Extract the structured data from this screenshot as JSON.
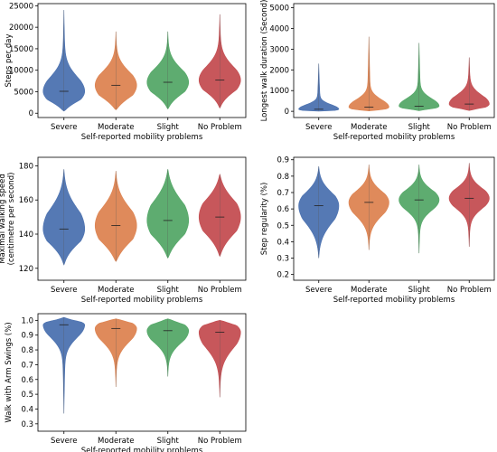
{
  "colors": [
    "#4c72b0",
    "#dd8452",
    "#55a868",
    "#c44e52"
  ],
  "chart_data": [
    {
      "type": "violin",
      "xlabel": "Self-reported mobility problems",
      "ylabel": "Steps per day",
      "categories": [
        "Severe",
        "Moderate",
        "Slight",
        "No Problem"
      ],
      "ylim": [
        -1000,
        25500
      ],
      "yticks": [
        0,
        5000,
        10000,
        15000,
        20000,
        25000
      ],
      "ytick_labels": [
        "0",
        "5000",
        "10000",
        "15000",
        "20000",
        "25000"
      ],
      "series": [
        {
          "min": 500,
          "q1": 3200,
          "median": 5100,
          "q3": 7500,
          "max": 24000
        },
        {
          "min": 800,
          "q1": 4200,
          "median": 6500,
          "q3": 8800,
          "max": 19000
        },
        {
          "min": 1000,
          "q1": 5000,
          "median": 7200,
          "q3": 9500,
          "max": 19000
        },
        {
          "min": 1200,
          "q1": 5500,
          "median": 7700,
          "q3": 10000,
          "max": 23000
        }
      ]
    },
    {
      "type": "violin",
      "xlabel": "Self-reported mobility problems",
      "ylabel": "Longest walk duration (Second)",
      "categories": [
        "Severe",
        "Moderate",
        "Slight",
        "No Problem"
      ],
      "ylim": [
        -300,
        5200
      ],
      "yticks": [
        0,
        1000,
        2000,
        3000,
        4000,
        5000
      ],
      "ytick_labels": [
        "0",
        "1000",
        "2000",
        "3000",
        "4000",
        "5000"
      ],
      "series": [
        {
          "min": 10,
          "q1": 40,
          "median": 100,
          "q3": 250,
          "max": 2300
        },
        {
          "min": 20,
          "q1": 100,
          "median": 200,
          "q3": 450,
          "max": 3600
        },
        {
          "min": 30,
          "q1": 150,
          "median": 250,
          "q3": 500,
          "max": 3300
        },
        {
          "min": 40,
          "q1": 200,
          "median": 350,
          "q3": 650,
          "max": 2600
        }
      ]
    },
    {
      "type": "violin",
      "xlabel": "Self-reported mobility problems",
      "ylabel": "Maximal walking speed\n(centimetre per second)",
      "categories": [
        "Severe",
        "Moderate",
        "Slight",
        "No Problem"
      ],
      "ylim": [
        113,
        185
      ],
      "yticks": [
        120,
        140,
        160,
        180
      ],
      "ytick_labels": [
        "120",
        "140",
        "160",
        "180"
      ],
      "series": [
        {
          "min": 122,
          "q1": 136,
          "median": 143,
          "q3": 152,
          "max": 178
        },
        {
          "min": 124,
          "q1": 137,
          "median": 145,
          "q3": 153,
          "max": 177
        },
        {
          "min": 126,
          "q1": 140,
          "median": 148,
          "q3": 157,
          "max": 178
        },
        {
          "min": 127,
          "q1": 142,
          "median": 150,
          "q3": 158,
          "max": 175
        }
      ]
    },
    {
      "type": "violin",
      "xlabel": "Self-reported mobility problems",
      "ylabel": "Step regularity (%)",
      "categories": [
        "Severe",
        "Moderate",
        "Slight",
        "No Problem"
      ],
      "ylim": [
        0.165,
        0.915
      ],
      "yticks": [
        0.2,
        0.3,
        0.4,
        0.5,
        0.6,
        0.7,
        0.8,
        0.9
      ],
      "ytick_labels": [
        "0.2",
        "0.3",
        "0.4",
        "0.5",
        "0.6",
        "0.7",
        "0.8",
        "0.9"
      ],
      "series": [
        {
          "min": 0.3,
          "q1": 0.54,
          "median": 0.62,
          "q3": 0.68,
          "max": 0.86
        },
        {
          "min": 0.35,
          "q1": 0.58,
          "median": 0.64,
          "q3": 0.69,
          "max": 0.87
        },
        {
          "min": 0.33,
          "q1": 0.61,
          "median": 0.655,
          "q3": 0.7,
          "max": 0.87
        },
        {
          "min": 0.37,
          "q1": 0.62,
          "median": 0.665,
          "q3": 0.71,
          "max": 0.88
        }
      ]
    },
    {
      "type": "violin",
      "xlabel": "Self-reported mobility problems",
      "ylabel": "Walk with Arm Swings (%)",
      "categories": [
        "Severe",
        "Moderate",
        "Slight",
        "No Problem"
      ],
      "ylim": [
        0.25,
        1.045
      ],
      "yticks": [
        0.3,
        0.4,
        0.5,
        0.6,
        0.7,
        0.8,
        0.9,
        1.0
      ],
      "ytick_labels": [
        "0.3",
        "0.4",
        "0.5",
        "0.6",
        "0.7",
        "0.8",
        "0.9",
        "1.0"
      ],
      "series": [
        {
          "min": 0.37,
          "q1": 0.91,
          "median": 0.97,
          "q3": 0.99,
          "max": 1.02
        },
        {
          "min": 0.55,
          "q1": 0.88,
          "median": 0.945,
          "q3": 0.98,
          "max": 1.01
        },
        {
          "min": 0.62,
          "q1": 0.87,
          "median": 0.93,
          "q3": 0.97,
          "max": 1.01
        },
        {
          "min": 0.48,
          "q1": 0.84,
          "median": 0.92,
          "q3": 0.965,
          "max": 1.0
        }
      ]
    }
  ]
}
